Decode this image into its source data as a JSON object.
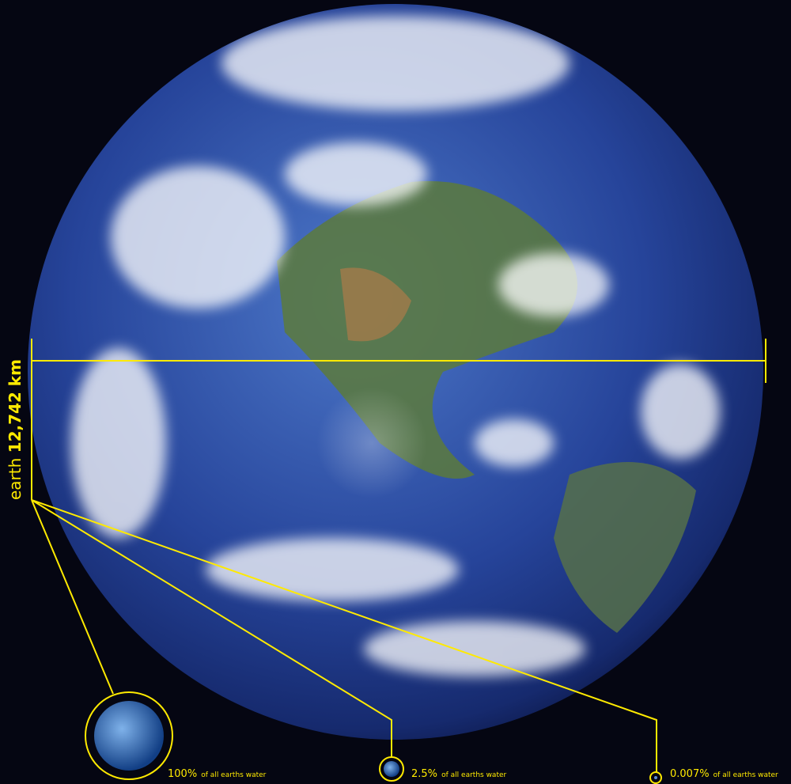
{
  "earth": {
    "label": "earth",
    "diameter": "12,742 km"
  },
  "spheres": [
    {
      "percent": "100%",
      "caption": "of all earths water"
    },
    {
      "percent": "2.5%",
      "caption": "of all earths water"
    },
    {
      "percent": "0.007%",
      "caption": "of all earths water"
    }
  ]
}
